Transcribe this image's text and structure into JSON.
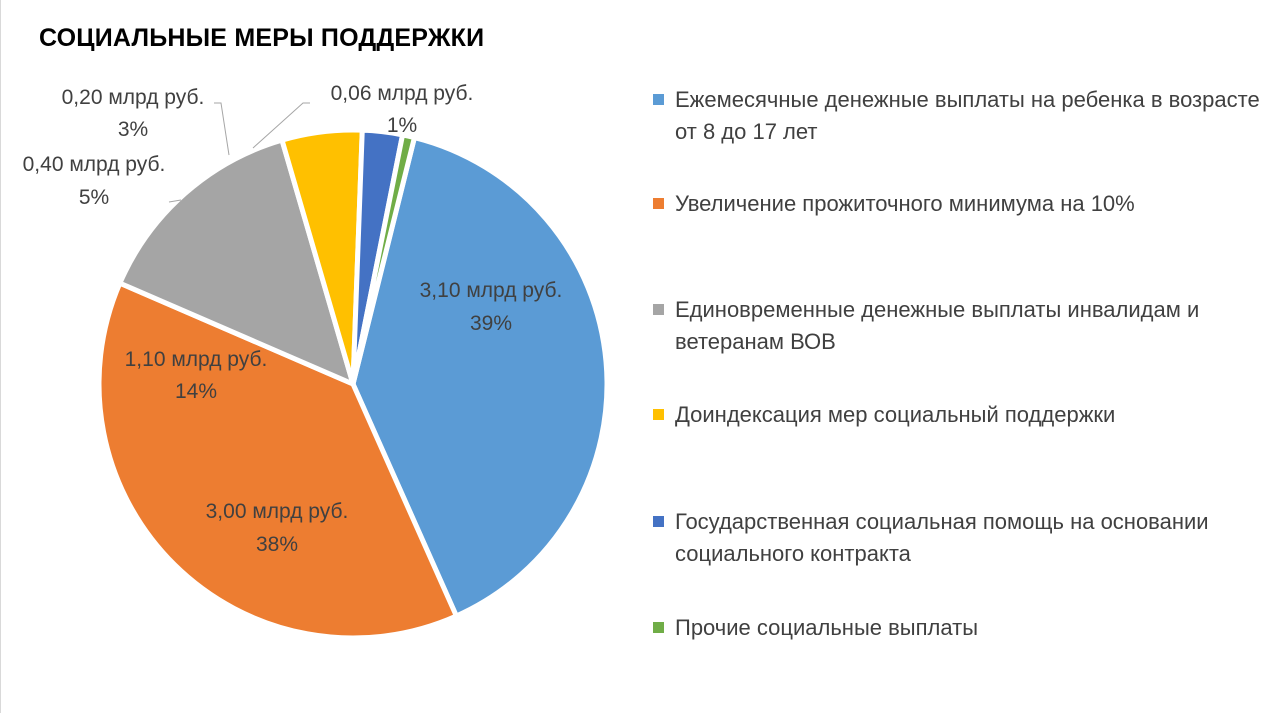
{
  "title": "СОЦИАЛЬНЫЕ МЕРЫ ПОДДЕРЖКИ",
  "chart_data": {
    "type": "pie",
    "title": "СОЦИАЛЬНЫЕ МЕРЫ ПОДДЕРЖКИ",
    "legend_position": "right",
    "slices": [
      {
        "name": "Ежемесячные денежные выплаты на ребенка в возрасте от 8 до 17 лет",
        "value": 3.1,
        "value_label": "3,10  млрд руб.",
        "percent_label": "39%",
        "color": "#5B9BD5"
      },
      {
        "name": "Увеличение  прожиточного минимума на 10%",
        "value": 3.0,
        "value_label": "3,00  млрд руб.",
        "percent_label": "38%",
        "color": "#ED7D31"
      },
      {
        "name": "Единовременные денежные выплаты инвалидам и ветеранам ВОВ",
        "value": 1.1,
        "value_label": "1,10  млрд руб.",
        "percent_label": "14%",
        "color": "#A5A5A5"
      },
      {
        "name": "Доиндексация мер социальный поддержки",
        "value": 0.4,
        "value_label": "0,40  млрд руб.",
        "percent_label": "5%",
        "color": "#FFC000"
      },
      {
        "name": "Государственная социальная помощь на основании социального контракта",
        "value": 0.2,
        "value_label": "0,20  млрд руб.",
        "percent_label": "3%",
        "color": "#4472C4"
      },
      {
        "name": "Прочие социальные выплаты",
        "value": 0.06,
        "value_label": "0,06  млрд руб.",
        "percent_label": "1%",
        "color": "#70AD47"
      }
    ]
  }
}
